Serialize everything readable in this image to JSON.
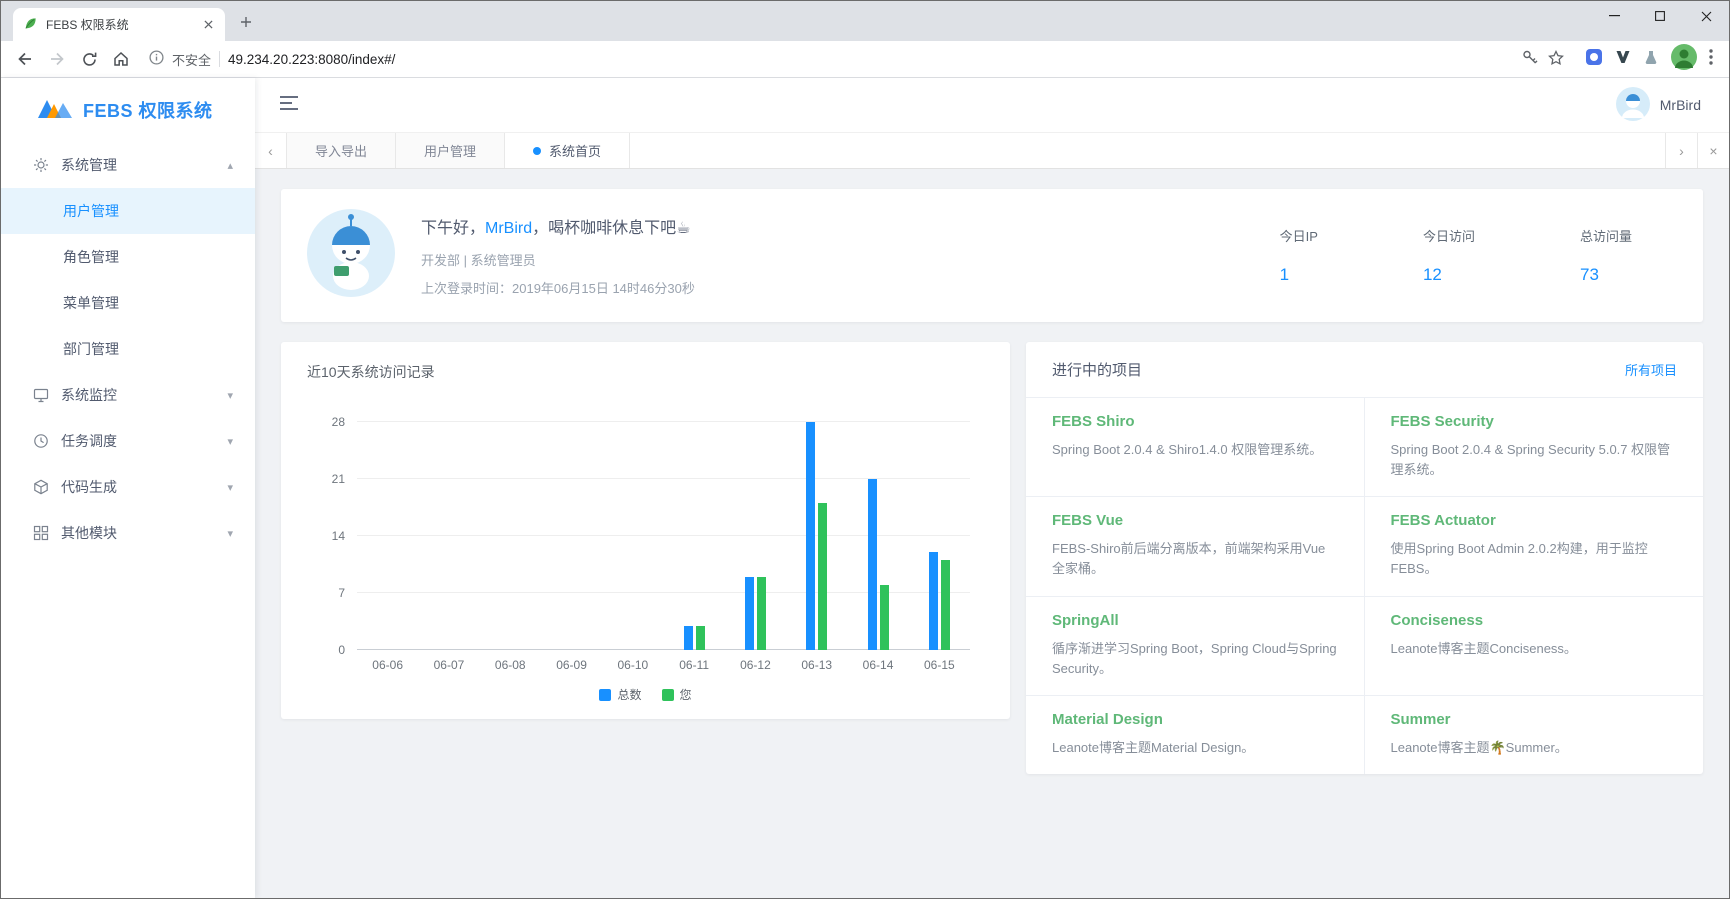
{
  "browser": {
    "tab_title": "FEBS 权限系统",
    "security_label": "不安全",
    "url": "49.234.20.223:8080/index#/"
  },
  "app": {
    "logo_text": "FEBS 权限系统",
    "header_user": "MrBird",
    "page_tabs": [
      {
        "label": "导入导出",
        "active": false
      },
      {
        "label": "用户管理",
        "active": false
      },
      {
        "label": "系统首页",
        "active": true
      }
    ],
    "sidebar_menu": [
      {
        "label": "系统管理",
        "icon": "gear-icon",
        "expanded": true,
        "children": [
          {
            "label": "用户管理",
            "active": true
          },
          {
            "label": "角色管理",
            "active": false
          },
          {
            "label": "菜单管理",
            "active": false
          },
          {
            "label": "部门管理",
            "active": false
          }
        ]
      },
      {
        "label": "系统监控",
        "icon": "monitor-icon",
        "expanded": false,
        "children": []
      },
      {
        "label": "任务调度",
        "icon": "clock-icon",
        "expanded": false,
        "children": []
      },
      {
        "label": "代码生成",
        "icon": "code-icon",
        "expanded": false,
        "children": []
      },
      {
        "label": "其他模块",
        "icon": "modules-icon",
        "expanded": false,
        "children": []
      }
    ]
  },
  "welcome": {
    "greeting_prefix": "下午好，",
    "greeting_name": "MrBird",
    "greeting_suffix": "，喝杯咖啡休息下吧☕",
    "identity": "开发部 | 系统管理员",
    "last_login": "上次登录时间：2019年06月15日 14时46分30秒",
    "stats": [
      {
        "label": "今日IP",
        "value": "1"
      },
      {
        "label": "今日访问",
        "value": "12"
      },
      {
        "label": "总访问量",
        "value": "73"
      }
    ]
  },
  "chart_card": {
    "title": "近10天系统访问记录"
  },
  "chart_data": {
    "type": "bar",
    "title": "近10天系统访问记录",
    "categories": [
      "06-06",
      "06-07",
      "06-08",
      "06-09",
      "06-10",
      "06-11",
      "06-12",
      "06-13",
      "06-14",
      "06-15"
    ],
    "series": [
      {
        "name": "总数",
        "color": "#1890ff",
        "values": [
          0,
          0,
          0,
          0,
          0,
          3,
          9,
          28,
          21,
          12
        ]
      },
      {
        "name": "您",
        "color": "#2fc25b",
        "values": [
          0,
          0,
          0,
          0,
          0,
          3,
          9,
          18,
          8,
          11
        ]
      }
    ],
    "xlabel": "",
    "ylabel": "",
    "ylim": [
      0,
      28
    ],
    "yticks": [
      0,
      7,
      14,
      21,
      28
    ],
    "grid": true,
    "legend_position": "bottom"
  },
  "projects": {
    "title": "进行中的项目",
    "view_all": "所有项目",
    "items": [
      {
        "name": "FEBS Shiro",
        "desc": "Spring Boot 2.0.4 & Shiro1.4.0 权限管理系统。"
      },
      {
        "name": "FEBS Security",
        "desc": "Spring Boot 2.0.4 & Spring Security 5.0.7 权限管理系统。"
      },
      {
        "name": "FEBS Vue",
        "desc": "FEBS-Shiro前后端分离版本，前端架构采用Vue全家桶。"
      },
      {
        "name": "FEBS Actuator",
        "desc": "使用Spring Boot Admin 2.0.2构建，用于监控FEBS。"
      },
      {
        "name": "SpringAll",
        "desc": "循序渐进学习Spring Boot，Spring Cloud与Spring Security。"
      },
      {
        "name": "Conciseness",
        "desc": "Leanote博客主题Conciseness。"
      },
      {
        "name": "Material Design",
        "desc": "Leanote博客主题Material Design。"
      },
      {
        "name": "Summer",
        "desc": "Leanote博客主题🌴Summer。"
      }
    ]
  },
  "theme": {
    "accent_blue": "#1890ff",
    "brand_blue": "#2d8cf0",
    "project_green": "#5fb878",
    "chart_green": "#2fc25b",
    "content_bg": "#f0f2f5",
    "titlebar_bg": "#dee1e6"
  }
}
